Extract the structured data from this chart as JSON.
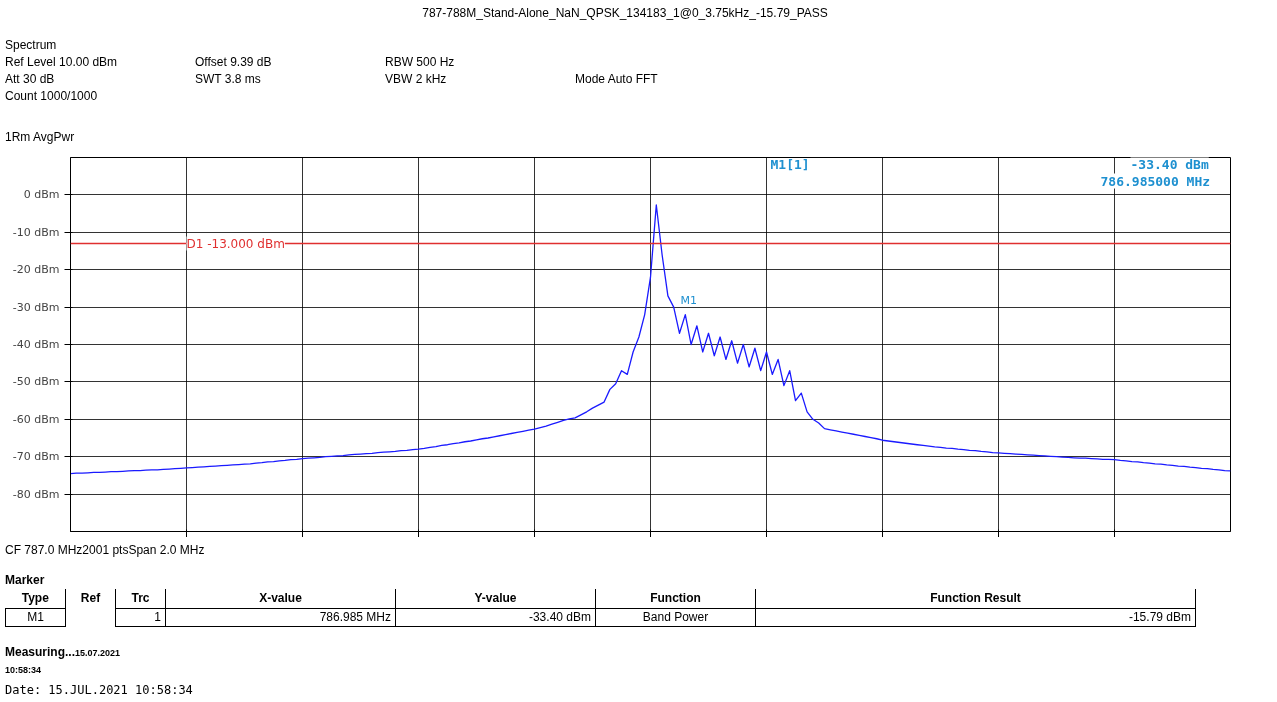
{
  "chart_data": {
    "type": "line",
    "title": "787-788M_Stand-Alone_NaN_QPSK_134183_1@0_3.75kHz_-15.79_PASS",
    "annotations": [
      "Spectrum",
      "Ref Level 10.00 dBm",
      "Offset 9.39 dB",
      "RBW 500 Hz",
      "Att 30 dB",
      "SWT 3.8 ms",
      "VBW 2 kHz",
      "Mode Auto FFT",
      "Count 1000/1000",
      "1Rm AvgPwr",
      "M1[1]",
      "-33.40 dBm",
      "786.985000 MHz",
      "M1",
      "CF 787.0 MHz",
      "2001 pts",
      "Span 2.0 MHz",
      "Marker",
      "Type",
      "Ref",
      "Trc",
      "X-value",
      "Y-value",
      "Function",
      "Function Result",
      "M1",
      "1",
      "786.985 MHz",
      "-33.40 dBm",
      "Band Power",
      "-15.79 dBm",
      "Measuring...",
      "15.07.2021\n10:58:34",
      "Date: 15.JUL.2021   10:58:34"
    ],
    "categories": [
      null,
      null,
      null,
      null,
      null,
      null,
      null,
      null,
      null,
      null,
      null,
      null,
      null,
      null,
      null,
      null,
      null,
      null,
      null,
      null,
      null,
      null,
      null,
      null,
      null,
      null,
      null,
      null,
      null,
      null,
      null,
      null,
      null,
      null,
      null,
      null,
      null,
      null,
      null,
      null,
      null,
      null,
      null,
      null,
      null,
      null,
      null,
      null,
      null,
      null,
      null,
      null,
      null,
      null,
      null,
      null,
      null,
      null,
      null,
      null,
      null,
      null,
      null,
      null,
      null,
      null,
      null,
      null,
      null,
      null,
      null,
      null,
      null,
      null,
      null,
      null,
      null,
      null,
      null,
      null,
      null,
      null,
      null,
      null,
      null,
      null,
      null,
      null,
      null,
      null,
      null,
      null,
      null,
      null,
      null,
      null,
      null,
      null,
      null,
      null,
      null,
      null,
      null,
      null,
      null,
      null,
      null,
      null,
      null,
      null,
      null,
      null,
      null,
      null,
      null,
      null,
      null,
      null,
      null,
      null,
      null,
      null,
      null,
      null,
      null,
      null,
      null,
      null,
      null,
      null,
      null,
      null,
      null,
      null,
      null,
      null,
      null,
      null,
      null,
      null,
      null,
      null,
      null,
      null,
      null,
      null,
      null,
      null,
      null,
      null,
      null,
      null,
      null,
      null,
      null,
      null,
      null,
      null,
      null,
      null,
      null,
      null,
      null,
      null,
      null,
      null,
      null,
      null,
      null,
      null,
      null,
      null,
      null,
      null,
      null,
      null,
      null,
      null,
      null,
      null,
      null,
      null,
      null,
      null,
      null,
      null,
      null,
      null,
      null,
      null,
      null,
      null,
      null,
      null,
      null,
      null,
      null,
      null,
      null,
      null,
      null
    ],
    "series": [
      {
        "color": "#1a1aff",
        "values": [
          -74.5,
          -74.4,
          -74.4,
          -74.3,
          -74.2,
          -74.2,
          -74.1,
          -74.0,
          -74.0,
          -73.9,
          -73.8,
          -73.7,
          -73.7,
          -73.6,
          -73.5,
          -73.5,
          -73.4,
          -73.3,
          -73.2,
          -73.1,
          -73.0,
          -72.9,
          -72.8,
          -72.7,
          -72.6,
          -72.5,
          -72.4,
          -72.3,
          -72.2,
          -72.1,
          -72.0,
          -71.9,
          -71.7,
          -71.6,
          -71.4,
          -71.3,
          -71.1,
          -71.0,
          -70.8,
          -70.7,
          -70.5,
          -70.4,
          -70.3,
          -70.2,
          -70.0,
          -69.9,
          -69.8,
          -69.7,
          -69.5,
          -69.4,
          -69.3,
          -69.2,
          -69.1,
          -68.9,
          -68.8,
          -68.7,
          -68.6,
          -68.4,
          -68.3,
          -68.1,
          -68.0,
          -67.8,
          -67.5,
          -67.3,
          -67.0,
          -66.8,
          -66.5,
          -66.3,
          -66.0,
          -65.8,
          -65.5,
          -65.2,
          -65.0,
          -64.7,
          -64.4,
          -64.1,
          -63.8,
          -63.5,
          -63.2,
          -62.9,
          -62.6,
          -62.2,
          -61.8,
          -61.3,
          -60.8,
          -60.3,
          -59.9,
          -59.6,
          -58.8,
          -58.0,
          -57.0,
          -56.2,
          -55.4,
          -52.0,
          -50.5,
          -47.0,
          -48.0,
          -42.0,
          -38.0,
          -32.0,
          -22.0,
          -2.7,
          -16.0,
          -27.0,
          -30.0,
          -37.0,
          -32.0,
          -40.0,
          -35.0,
          -42.0,
          -37.0,
          -43.0,
          -38.0,
          -44.0,
          -39.0,
          -45.0,
          -40.0,
          -46.0,
          -41.0,
          -47.0,
          -42.0,
          -48.0,
          -44.0,
          -51.0,
          -47.0,
          -55.0,
          -53.0,
          -58.0,
          -60.0,
          -61.0,
          -62.5,
          -62.8,
          -63.1,
          -63.4,
          -63.7,
          -64.0,
          -64.3,
          -64.6,
          -64.9,
          -65.2,
          -65.6,
          -65.8,
          -66.0,
          -66.2,
          -66.4,
          -66.6,
          -66.8,
          -67.0,
          -67.2,
          -67.4,
          -67.5,
          -67.7,
          -67.8,
          -68.0,
          -68.1,
          -68.3,
          -68.4,
          -68.6,
          -68.7,
          -68.9,
          -69.0,
          -69.1,
          -69.2,
          -69.3,
          -69.4,
          -69.5,
          -69.6,
          -69.7,
          -69.8,
          -69.9,
          -70.0,
          -70.1,
          -70.2,
          -70.3,
          -70.4,
          -70.4,
          -70.5,
          -70.6,
          -70.7,
          -70.7,
          -70.8,
          -71.0,
          -71.1,
          -71.3,
          -71.4,
          -71.6,
          -71.7,
          -71.9,
          -72.0,
          -72.2,
          -72.3,
          -72.5,
          -72.6,
          -72.8,
          -72.9,
          -73.1,
          -73.2,
          -73.4,
          -73.5,
          -73.7,
          -73.8
        ]
      }
    ],
    "ylim": [
      -90,
      10
    ],
    "yticks": [
      {
        "value": 0,
        "label": "0 dBm"
      },
      {
        "value": -10,
        "label": "-10 dBm"
      },
      {
        "value": -20,
        "label": "-20 dBm"
      },
      {
        "value": -30,
        "label": "-30 dBm"
      },
      {
        "value": -40,
        "label": "-40 dBm"
      },
      {
        "value": -50,
        "label": "-50 dBm"
      },
      {
        "value": -60,
        "label": "-60 dBm"
      },
      {
        "value": -70,
        "label": "-70 dBm"
      },
      {
        "value": -80,
        "label": "-80 dBm"
      }
    ],
    "ref_lines": [
      {
        "axis": "y",
        "value": -13,
        "label": "D1 -13.000 dBm",
        "color": "#e03030"
      }
    ],
    "grid": true,
    "tick_labels": "y"
  }
}
